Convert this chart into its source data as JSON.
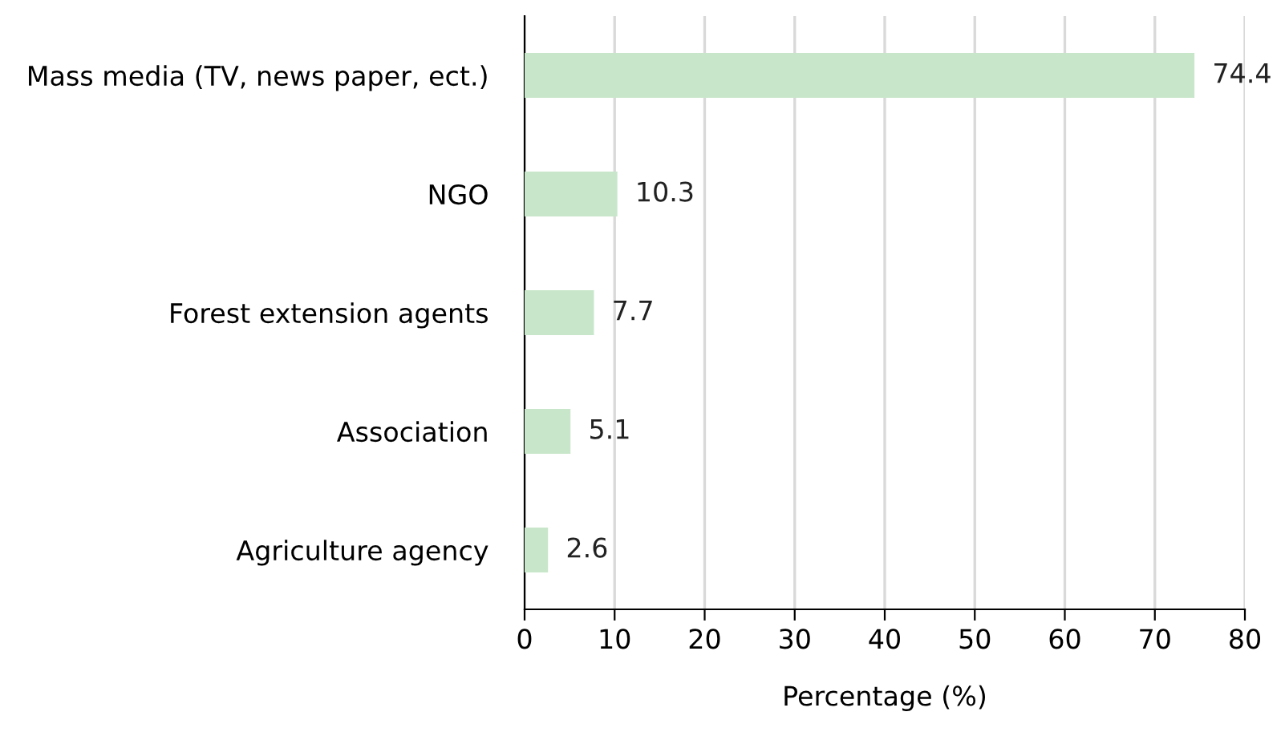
{
  "chart_data": {
    "type": "bar",
    "orientation": "horizontal",
    "xlabel": "Percentage (%)",
    "categories": [
      "Mass media (TV, news paper, ect.)",
      "NGO",
      "Forest extension agents",
      "Association",
      "Agriculture agency"
    ],
    "values": [
      74.4,
      10.3,
      7.7,
      5.1,
      2.6
    ],
    "color": "#c8e6c9",
    "xlim": [
      0,
      80
    ],
    "xticks": [
      0,
      10,
      20,
      30,
      40,
      50,
      60,
      70,
      80
    ],
    "grid": "x",
    "data_labels": true
  }
}
